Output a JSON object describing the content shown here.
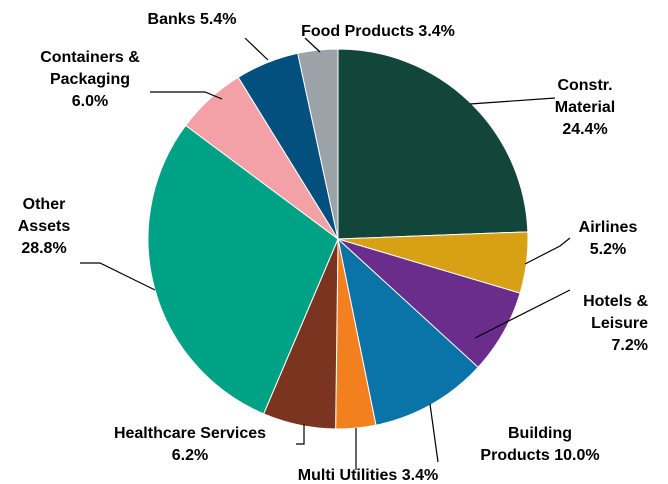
{
  "chart_data": {
    "type": "pie",
    "start_angle_deg": 0,
    "direction": "clockwise",
    "slices": [
      {
        "key": "constr",
        "lines": [
          "Constr.",
          "Material",
          "24.4%"
        ],
        "value": 24.4,
        "color": "#13463a"
      },
      {
        "key": "airlines",
        "lines": [
          "Airlines",
          "5.2%"
        ],
        "value": 5.2,
        "color": "#d8a015"
      },
      {
        "key": "hotels",
        "lines": [
          "Hotels &",
          "Leisure",
          "7.2%"
        ],
        "value": 7.2,
        "color": "#6b2d8c"
      },
      {
        "key": "building",
        "lines": [
          "Building",
          "Products 10.0%"
        ],
        "value": 10.0,
        "color": "#0a73a8"
      },
      {
        "key": "multi",
        "lines": [
          "Multi Utilities 3.4%"
        ],
        "value": 3.4,
        "color": "#f2801e"
      },
      {
        "key": "healthcare",
        "lines": [
          "Healthcare Services",
          "6.2%"
        ],
        "value": 6.2,
        "color": "#7b3420"
      },
      {
        "key": "other",
        "lines": [
          "Other",
          "Assets",
          "28.8%"
        ],
        "value": 28.8,
        "color": "#00a286"
      },
      {
        "key": "containers",
        "lines": [
          "Containers &",
          "Packaging",
          "6.0%"
        ],
        "value": 6.0,
        "color": "#f3a1a6"
      },
      {
        "key": "banks",
        "lines": [
          "Banks 5.4%"
        ],
        "value": 5.4,
        "color": "#034f7d"
      },
      {
        "key": "food",
        "lines": [
          "Food Products 3.4%"
        ],
        "value": 3.4,
        "color": "#9ba2a8"
      }
    ]
  }
}
